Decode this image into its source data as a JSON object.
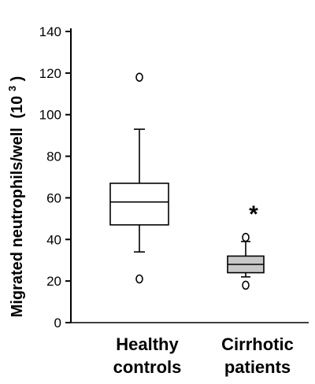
{
  "chart_data": {
    "type": "box",
    "title": "",
    "xlabel": "",
    "ylabel": "Migrated neutrophils/well",
    "ylabel_unit_base": "(10",
    "ylabel_unit_exp": "3",
    "ylabel_unit_close": ")",
    "ylim": [
      0,
      140
    ],
    "yticks": [
      0,
      20,
      40,
      60,
      80,
      100,
      120,
      140
    ],
    "grid": false,
    "categories": [
      {
        "line1": "Healthy",
        "line2": "controls"
      },
      {
        "line1": "Cirrhotic",
        "line2": "patients"
      }
    ],
    "boxes": [
      {
        "category": "Healthy controls",
        "whisker_low": 34,
        "q1": 47,
        "median": 58,
        "q3": 67,
        "whisker_high": 93,
        "outliers": [
          21,
          118
        ],
        "fill": "#ffffff",
        "annotation": ""
      },
      {
        "category": "Cirrhotic patients",
        "whisker_low": 22,
        "q1": 24,
        "median": 28,
        "q3": 32,
        "whisker_high": 39,
        "outliers": [
          18,
          41
        ],
        "fill": "#c8c8c8",
        "annotation": "*"
      }
    ]
  }
}
